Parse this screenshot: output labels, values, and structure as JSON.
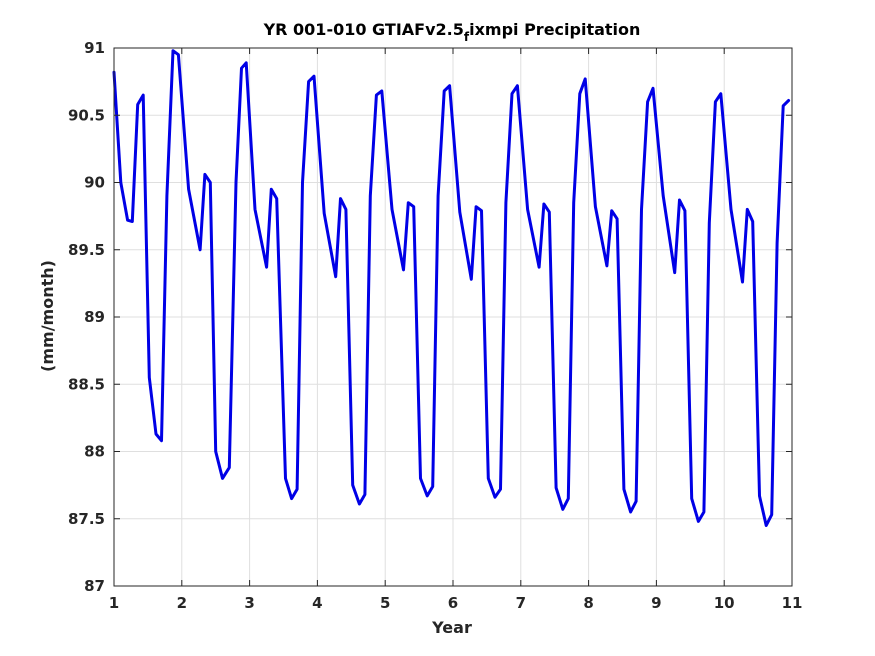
{
  "chart_data": {
    "type": "line",
    "title_main": "YR 001-010 GTIAFv2.5",
    "title_sub": "f",
    "title_end": "ixmpi Precipitation",
    "xlabel": "Year",
    "ylabel": "(mm/month)",
    "xlim": [
      1,
      11
    ],
    "ylim": [
      87,
      91
    ],
    "xticks": [
      1,
      2,
      3,
      4,
      5,
      6,
      7,
      8,
      9,
      10,
      11
    ],
    "yticks": [
      87,
      87.5,
      88,
      88.5,
      89,
      89.5,
      90,
      90.5,
      91
    ],
    "grid": true,
    "line_color": "#0000e6",
    "series": [
      {
        "x": [
          1.0,
          1.1,
          1.2,
          1.27,
          1.35,
          1.43,
          1.52,
          1.62,
          1.7,
          1.78,
          1.87,
          1.95,
          2.1,
          2.27,
          2.34,
          2.42,
          2.5,
          2.6,
          2.7,
          2.8,
          2.88,
          2.95,
          3.08,
          3.25,
          3.32,
          3.4,
          3.53,
          3.62,
          3.7,
          3.78,
          3.87,
          3.95,
          4.1,
          4.27,
          4.34,
          4.42,
          4.52,
          4.62,
          4.7,
          4.78,
          4.87,
          4.95,
          5.1,
          5.27,
          5.34,
          5.42,
          5.52,
          5.62,
          5.7,
          5.78,
          5.87,
          5.95,
          6.1,
          6.27,
          6.34,
          6.42,
          6.52,
          6.62,
          6.7,
          6.78,
          6.87,
          6.95,
          7.1,
          7.27,
          7.34,
          7.42,
          7.52,
          7.62,
          7.7,
          7.78,
          7.87,
          7.95,
          8.1,
          8.27,
          8.34,
          8.42,
          8.52,
          8.62,
          8.7,
          8.78,
          8.87,
          8.95,
          9.1,
          9.27,
          9.34,
          9.42,
          9.52,
          9.62,
          9.7,
          9.78,
          9.87,
          9.95,
          10.1,
          10.27,
          10.34,
          10.42,
          10.52,
          10.62,
          10.7,
          10.78,
          10.87,
          10.95
        ],
        "y": [
          90.82,
          90.0,
          89.72,
          89.71,
          90.58,
          90.65,
          88.55,
          88.13,
          88.08,
          89.9,
          90.98,
          90.95,
          89.95,
          89.5,
          90.06,
          90.0,
          88.0,
          87.8,
          87.88,
          90.0,
          90.85,
          90.89,
          89.8,
          89.37,
          89.95,
          89.88,
          87.8,
          87.65,
          87.72,
          90.0,
          90.75,
          90.79,
          89.77,
          89.3,
          89.88,
          89.8,
          87.75,
          87.61,
          87.68,
          89.9,
          90.65,
          90.68,
          89.8,
          89.35,
          89.85,
          89.82,
          87.8,
          87.67,
          87.74,
          89.9,
          90.68,
          90.72,
          89.78,
          89.28,
          89.82,
          89.79,
          87.8,
          87.66,
          87.72,
          89.85,
          90.66,
          90.72,
          89.8,
          89.37,
          89.84,
          89.78,
          87.73,
          87.57,
          87.65,
          89.85,
          90.66,
          90.77,
          89.82,
          89.38,
          89.79,
          89.73,
          87.72,
          87.55,
          87.63,
          89.8,
          90.6,
          90.7,
          89.9,
          89.33,
          89.87,
          89.79,
          87.65,
          87.48,
          87.55,
          89.7,
          90.6,
          90.66,
          89.8,
          89.26,
          89.8,
          89.71,
          87.67,
          87.45,
          87.53,
          89.55,
          90.57,
          90.61
        ]
      }
    ]
  }
}
